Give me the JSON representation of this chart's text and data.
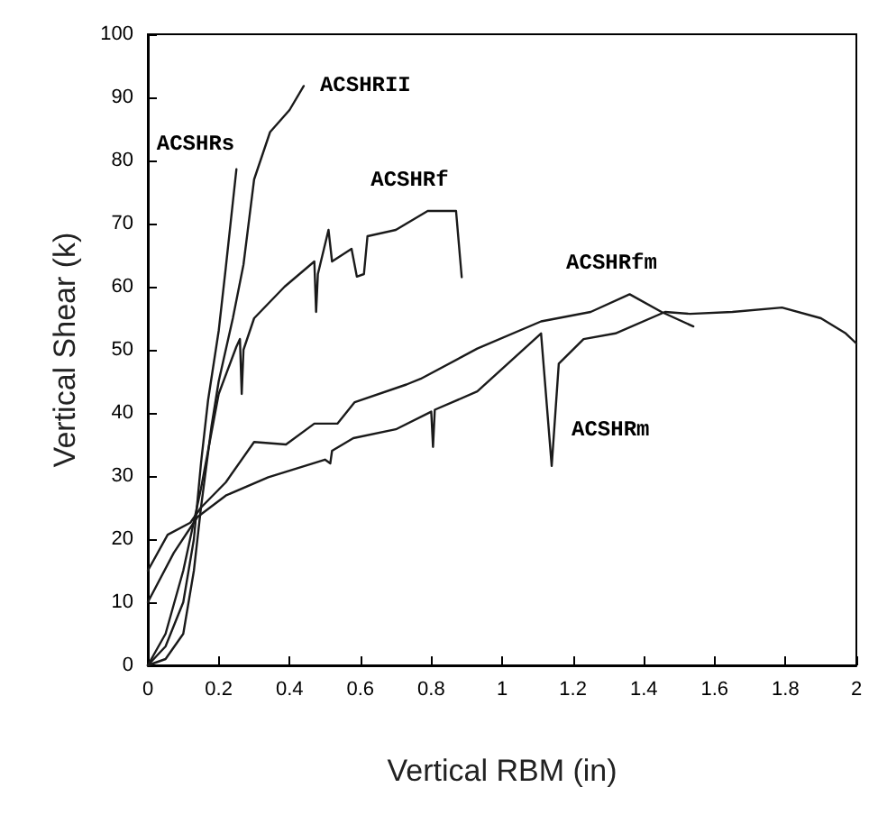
{
  "chart_data": {
    "type": "line",
    "xlabel": "Vertical RBM (in)",
    "ylabel": "Vertical Shear (k)",
    "xlim": [
      0,
      2
    ],
    "xticks": [
      0,
      0.2,
      0.4,
      0.6,
      0.8,
      1,
      1.2,
      1.4,
      1.6,
      1.8,
      2
    ],
    "ylim": [
      0,
      100
    ],
    "yticks": [
      0,
      10,
      20,
      30,
      40,
      50,
      60,
      70,
      80,
      90,
      100
    ],
    "grid": false,
    "legend": false,
    "marker": "none",
    "line_style": "solid",
    "series": [
      {
        "name": "ACSHRs",
        "color": "#1a1a1a",
        "x": [
          0,
          0.05,
          0.1,
          0.13,
          0.15,
          0.17,
          0.2,
          0.22,
          0.25
        ],
        "values": [
          0,
          3,
          10,
          20,
          32,
          42,
          53,
          63,
          78.6
        ]
      },
      {
        "name": "ACSHRII",
        "color": "#1a1a1a",
        "x": [
          0,
          0.05,
          0.1,
          0.13,
          0.15,
          0.18,
          0.2,
          0.24,
          0.27,
          0.3,
          0.345,
          0.4,
          0.44
        ],
        "values": [
          0,
          1,
          5,
          15,
          25,
          38,
          45,
          55,
          63.5,
          77,
          84.5,
          88,
          91.8
        ]
      },
      {
        "name": "ACSHRf",
        "color": "#1a1a1a",
        "x": [
          0,
          0.05,
          0.1,
          0.15,
          0.2,
          0.25,
          0.26,
          0.265,
          0.27,
          0.3,
          0.386,
          0.47,
          0.475,
          0.48,
          0.51,
          0.52,
          0.575,
          0.59,
          0.61,
          0.62,
          0.7,
          0.79,
          0.87,
          0.886
        ],
        "values": [
          0,
          5,
          15,
          28,
          43,
          50.5,
          51.7,
          43,
          50,
          55,
          60,
          64,
          56,
          62,
          69,
          64,
          66,
          61.6,
          62,
          68,
          69,
          72,
          72,
          61.5
        ]
      },
      {
        "name": "ACSHRfm",
        "color": "#1a1a1a",
        "x": [
          0,
          0.056,
          0.12,
          0.15,
          0.22,
          0.3,
          0.39,
          0.47,
          0.535,
          0.584,
          0.73,
          0.77,
          0.93,
          1.11,
          1.25,
          1.36,
          1.45,
          1.54
        ],
        "values": [
          15,
          20.7,
          22.6,
          25,
          29,
          35.4,
          35,
          38.3,
          38.3,
          41.7,
          44.5,
          45.4,
          50.2,
          54.5,
          56,
          58.8,
          56,
          53.7
        ]
      },
      {
        "name": "ACSHRm",
        "color": "#1a1a1a",
        "x": [
          0,
          0.073,
          0.14,
          0.22,
          0.34,
          0.5,
          0.515,
          0.52,
          0.58,
          0.7,
          0.8,
          0.805,
          0.81,
          0.93,
          1.11,
          1.14,
          1.16,
          1.23,
          1.32,
          1.46,
          1.53,
          1.65,
          1.79,
          1.9,
          1.97,
          2
        ],
        "values": [
          10,
          17.8,
          23.5,
          26.9,
          29.8,
          32.6,
          32,
          34,
          36,
          37.4,
          40.2,
          34.6,
          40.5,
          43.4,
          52.6,
          31.6,
          47.8,
          51.7,
          52.6,
          56,
          55.7,
          56,
          56.7,
          55,
          52.6,
          51
        ]
      }
    ]
  }
}
